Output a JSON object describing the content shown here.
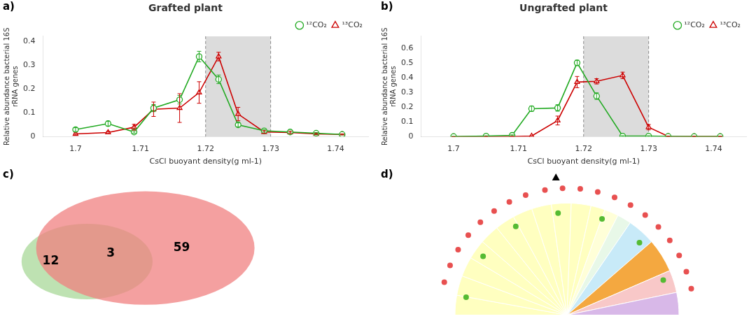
{
  "chart_data": [
    {
      "type": "line",
      "title": "Grafted plant",
      "annotations": [
        "a)"
      ],
      "xlabel": "CsCl buoyant density(g ml-1)",
      "ylabel": "Relative abundance bacterial 16S\nrRNA genes",
      "xlim": [
        1.695,
        1.745
      ],
      "xticks": [
        1.7,
        1.71,
        1.72,
        1.73,
        1.74
      ],
      "ylim": [
        0,
        0.42
      ],
      "yticks": [
        0,
        0.1,
        0.2,
        0.3,
        0.4
      ],
      "legend": "upper right",
      "grid": false,
      "shade": {
        "x": [
          1.72,
          1.73
        ],
        "color": "#DCDCDC"
      },
      "dashed_lines": [
        1.72,
        1.73
      ],
      "series": [
        {
          "name": "¹²CO₂",
          "color": "#22AA22",
          "marker": "circle",
          "x": [
            1.7,
            1.705,
            1.709,
            1.712,
            1.716,
            1.719,
            1.722,
            1.725,
            1.729,
            1.733,
            1.737,
            1.741
          ],
          "values": [
            0.03,
            0.055,
            0.02,
            0.12,
            0.155,
            0.335,
            0.24,
            0.05,
            0.025,
            0.02,
            0.015,
            0.01
          ],
          "errors": [
            0.008,
            0.01,
            0.005,
            0.015,
            0.018,
            0.022,
            0.018,
            0.008,
            0.005,
            0.004,
            0.003,
            0.002
          ]
        },
        {
          "name": "¹³CO₂",
          "color": "#CC0000",
          "marker": "triangle",
          "x": [
            1.7,
            1.705,
            1.709,
            1.712,
            1.716,
            1.719,
            1.722,
            1.725,
            1.729,
            1.733,
            1.737,
            1.741
          ],
          "values": [
            0.012,
            0.018,
            0.04,
            0.115,
            0.12,
            0.185,
            0.335,
            0.095,
            0.02,
            0.018,
            0.012,
            0.01
          ],
          "errors": [
            0.004,
            0.005,
            0.012,
            0.03,
            0.06,
            0.045,
            0.018,
            0.028,
            0.006,
            0.005,
            0.003,
            0.002
          ]
        }
      ]
    },
    {
      "type": "line",
      "title": "Ungrafted plant",
      "annotations": [
        "b)"
      ],
      "xlabel": "CsCl buoyant density(g ml-1)",
      "ylabel": "Relative abundance bacterial 16S\nrRNA genes",
      "xlim": [
        1.695,
        1.745
      ],
      "xticks": [
        1.7,
        1.71,
        1.72,
        1.73,
        1.74
      ],
      "ylim": [
        0,
        0.68
      ],
      "yticks": [
        0,
        0.1,
        0.2,
        0.3,
        0.4,
        0.5,
        0.6
      ],
      "legend": "upper right",
      "grid": false,
      "shade": {
        "x": [
          1.72,
          1.73
        ],
        "color": "#DCDCDC"
      },
      "dashed_lines": [
        1.72,
        1.73
      ],
      "series": [
        {
          "name": "¹²CO₂",
          "color": "#22AA22",
          "marker": "circle",
          "x": [
            1.7,
            1.705,
            1.709,
            1.712,
            1.716,
            1.719,
            1.722,
            1.726,
            1.73,
            1.733,
            1.737,
            1.741
          ],
          "values": [
            0.002,
            0.005,
            0.01,
            0.19,
            0.195,
            0.5,
            0.275,
            0.005,
            0.005,
            0.003,
            0.002,
            0.002
          ],
          "errors": [
            0.001,
            0.002,
            0.003,
            0.018,
            0.022,
            0.018,
            0.022,
            0.002,
            0.002,
            0.001,
            0.001,
            0.001
          ]
        },
        {
          "name": "¹³CO₂",
          "color": "#CC0000",
          "marker": "triangle",
          "x": [
            1.7,
            1.705,
            1.709,
            1.712,
            1.716,
            1.719,
            1.722,
            1.726,
            1.73,
            1.733,
            1.737,
            1.741
          ],
          "values": [
            0.0,
            0.001,
            0.002,
            0.005,
            0.11,
            0.37,
            0.375,
            0.415,
            0.065,
            0.003,
            0.002,
            0.002
          ],
          "errors": [
            0.0,
            0.001,
            0.001,
            0.002,
            0.03,
            0.038,
            0.018,
            0.022,
            0.018,
            0.001,
            0.001,
            0.001
          ]
        }
      ]
    },
    {
      "type": "venn",
      "annotations": [
        "c)"
      ],
      "values": [
        12,
        3,
        59
      ],
      "colors": [
        "#A8D898",
        "#F08080"
      ]
    },
    {
      "type": "pie",
      "annotations": [
        "d)"
      ],
      "values": [
        7,
        7,
        7,
        7,
        7,
        7,
        7,
        7,
        7,
        7,
        5,
        5,
        5,
        10,
        12,
        8,
        8
      ],
      "colors": [
        "#FFFFC0",
        "#FFFFC0",
        "#FFFFC0",
        "#FFFFC0",
        "#FFFFC0",
        "#FFFFC0",
        "#FFFFC0",
        "#FFFFC0",
        "#FFFFC0",
        "#FFFFC0",
        "#FFFFC0",
        "#FFFFD8",
        "#E8F8E8",
        "#C8EAF8",
        "#F4A840",
        "#F8C8C8",
        "#D8B8E8"
      ],
      "dots": [
        {
          "color": "#E85050",
          "angles": [
            165,
            157,
            149,
            141,
            133,
            125,
            117,
            109,
            100,
            92,
            84,
            76,
            68,
            60,
            52,
            44,
            36,
            28,
            20,
            12
          ]
        },
        {
          "color": "#55BB33",
          "angles": [
            170,
            145,
            120,
            95,
            70,
            45,
            20
          ]
        }
      ],
      "triangle_angle": 95
    }
  ]
}
